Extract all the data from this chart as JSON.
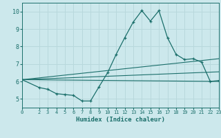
{
  "xlabel": "Humidex (Indice chaleur)",
  "bg_color": "#cce8ec",
  "grid_color": "#b8d8dc",
  "line_color": "#1a6e6a",
  "xlim": [
    0,
    23
  ],
  "ylim": [
    4.5,
    10.5
  ],
  "xticks": [
    0,
    2,
    3,
    4,
    5,
    6,
    7,
    8,
    9,
    10,
    11,
    12,
    13,
    14,
    15,
    16,
    17,
    18,
    19,
    20,
    21,
    22,
    23
  ],
  "yticks": [
    5,
    6,
    7,
    8,
    9,
    10
  ],
  "line1_x": [
    0,
    2,
    3,
    4,
    5,
    6,
    7,
    8,
    9,
    10,
    11,
    12,
    13,
    14,
    15,
    16,
    17,
    18,
    19,
    20,
    21,
    22,
    23
  ],
  "line1_y": [
    6.1,
    5.65,
    5.55,
    5.3,
    5.25,
    5.2,
    4.88,
    4.88,
    5.7,
    6.5,
    7.55,
    8.5,
    9.4,
    10.05,
    9.45,
    10.05,
    8.5,
    7.55,
    7.25,
    7.3,
    7.1,
    6.0,
    6.05
  ],
  "line2_x": [
    0,
    23
  ],
  "line2_y": [
    6.1,
    6.0
  ],
  "line3_x": [
    0,
    23
  ],
  "line3_y": [
    6.1,
    6.55
  ],
  "line4_x": [
    0,
    23
  ],
  "line4_y": [
    6.1,
    7.3
  ]
}
